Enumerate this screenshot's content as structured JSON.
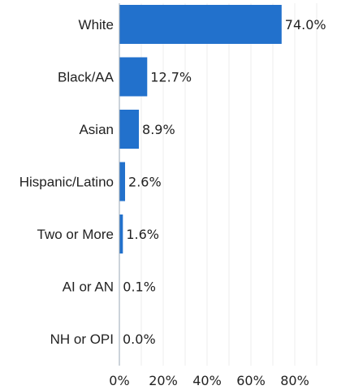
{
  "chart_data": {
    "type": "bar",
    "orientation": "horizontal",
    "categories": [
      "White",
      "Black/AA",
      "Asian",
      "Hispanic/Latino",
      "Two or More",
      "AI or AN",
      "NH or OPI"
    ],
    "values": [
      74.0,
      12.7,
      8.9,
      2.6,
      1.6,
      0.1,
      0.0
    ],
    "value_labels": [
      "74.0%",
      "12.7%",
      "8.9%",
      "2.6%",
      "1.6%",
      "0.1%",
      "0.0%"
    ],
    "x_ticks": [
      0,
      20,
      40,
      60,
      80
    ],
    "x_tick_labels": [
      "0%",
      "20%",
      "40%",
      "60%",
      "80%"
    ],
    "xlim": [
      0,
      100
    ],
    "grid": "vertical",
    "bar_color": "#2271cc",
    "title": "",
    "xlabel": "",
    "ylabel": ""
  }
}
